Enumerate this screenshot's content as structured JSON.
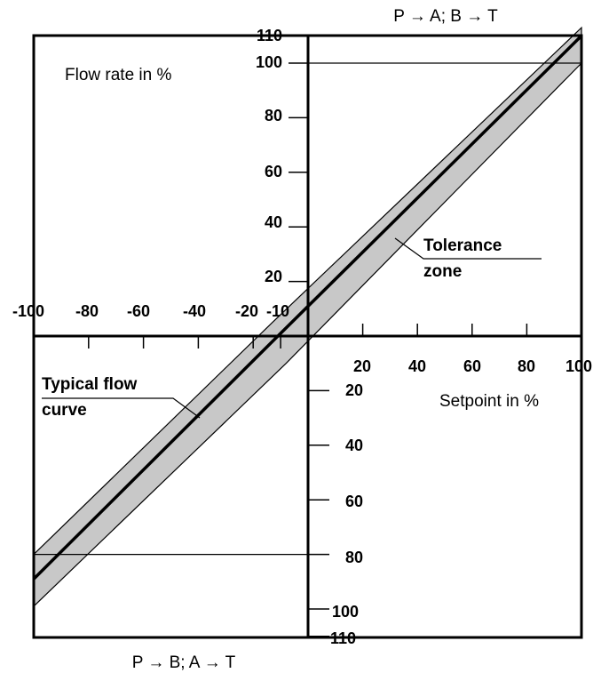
{
  "chart_data": {
    "type": "line",
    "title_top": "P → A; B → T",
    "title_bottom": "P → B; A → T",
    "ylabel": "Flow rate in %",
    "xlabel": "Setpoint in %",
    "annotations": {
      "tolerance_zone_line1": "Tolerance",
      "tolerance_zone_line2": "zone",
      "typical_flow_line1": "Typical flow",
      "typical_flow_line2": "curve"
    },
    "x_ticks": {
      "negative": [
        "-100",
        "-80",
        "-60",
        "-40",
        "-20",
        "-10"
      ],
      "positive": [
        "20",
        "40",
        "60",
        "80",
        "100"
      ]
    },
    "y_ticks": {
      "upper": [
        "110",
        "100",
        "80",
        "60",
        "40",
        "20"
      ],
      "lower": [
        "20",
        "40",
        "60",
        "80",
        "100",
        "110"
      ]
    },
    "xlim": [
      -100,
      100
    ],
    "ylim": [
      -110,
      110
    ],
    "series": [
      {
        "type": "line",
        "x": [
          -100,
          -11,
          100
        ],
        "y": [
          -89,
          0,
          110
        ]
      }
    ],
    "tolerance_band": {
      "upper": {
        "x": [
          -100,
          -13,
          100
        ],
        "y": [
          -80,
          5,
          113
        ]
      },
      "lower": {
        "x": [
          -100,
          -8,
          100
        ],
        "y": [
          -99,
          -10,
          100
        ]
      }
    },
    "reference_lines": [
      {
        "x_from": 0,
        "x_to": 100,
        "y": 100
      },
      {
        "x_from": -100,
        "x_to": 0,
        "y": -80
      }
    ],
    "grid": false
  }
}
